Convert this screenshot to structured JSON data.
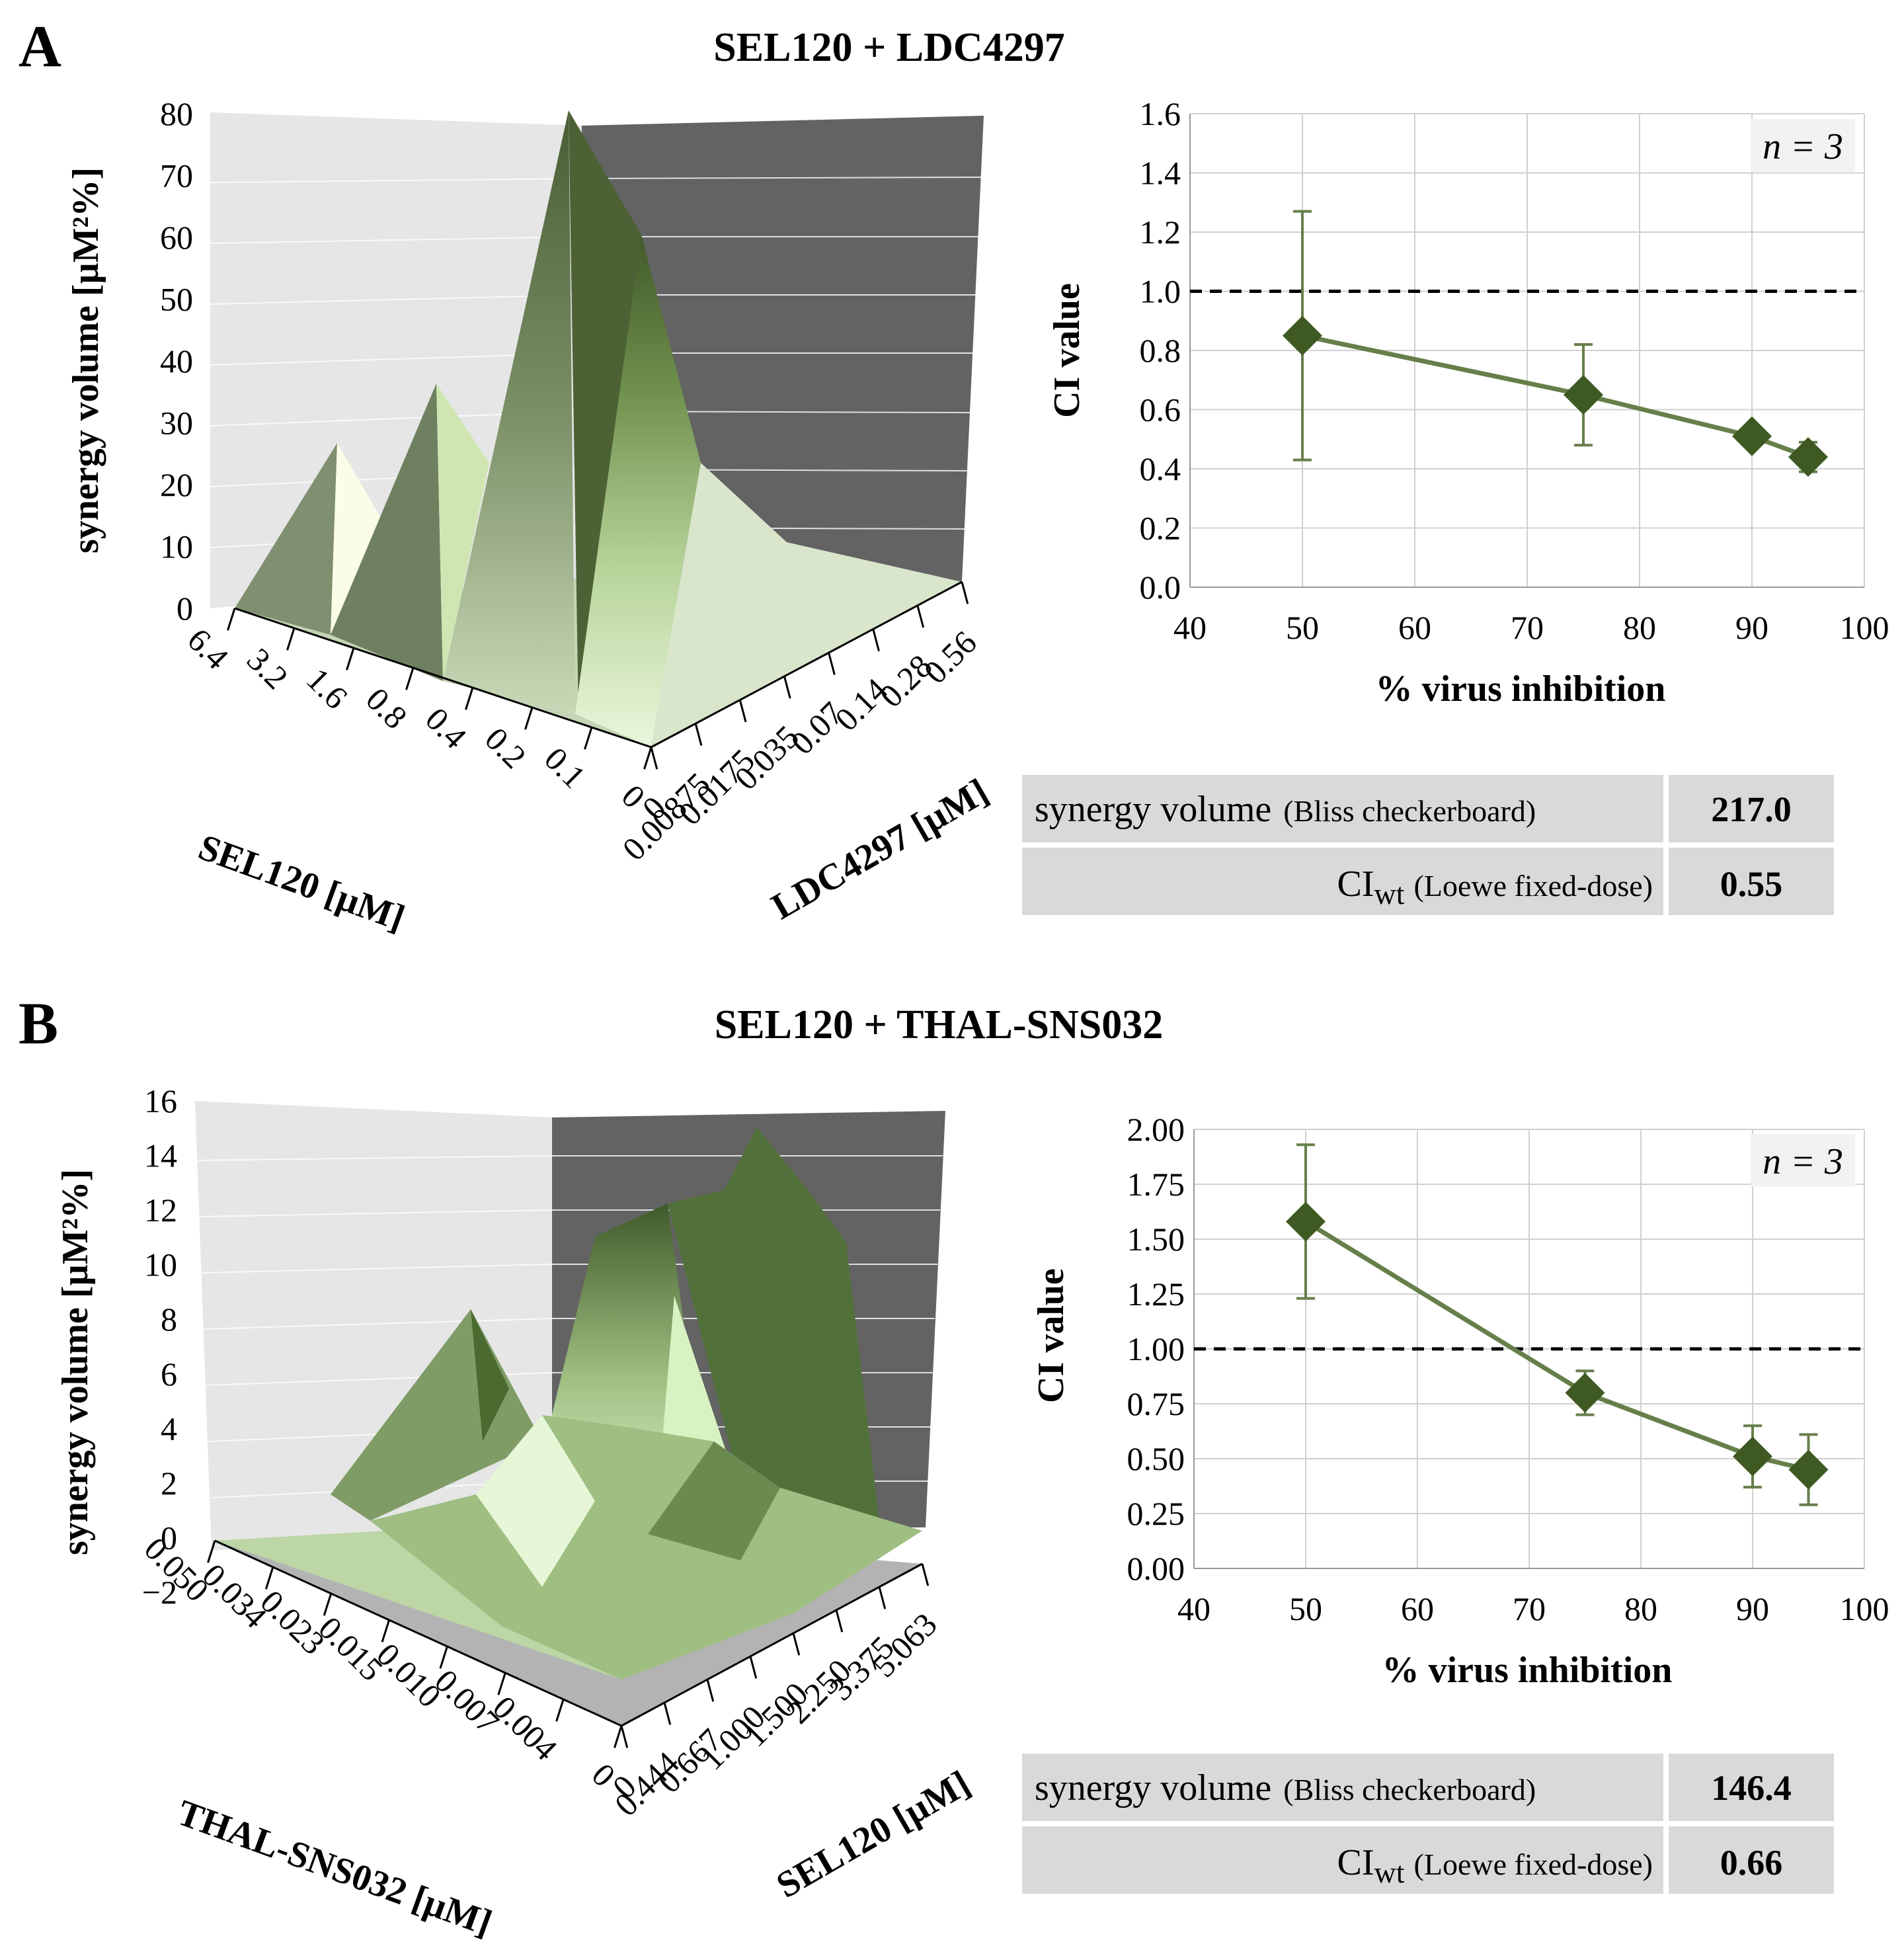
{
  "panels": [
    {
      "letter": "A",
      "title": "SEL120 + LDC4297"
    },
    {
      "letter": "B",
      "title": "SEL120 + THAL-SNS032"
    }
  ],
  "surfaces": [
    {
      "zlabel": "synergy volume [µM²%]",
      "zticks": [
        "0",
        "10",
        "20",
        "30",
        "40",
        "50",
        "60",
        "70",
        "80"
      ],
      "xlabel": "SEL120 [µM]",
      "xticks": [
        "6.4",
        "3.2",
        "1.6",
        "0.8",
        "0.4",
        "0.2",
        "0.1",
        "0"
      ],
      "ylabel": "LDC4297 [µM]",
      "yticks": [
        "0",
        "0.00875",
        "0.0175",
        "0.035",
        "0.07",
        "0.14",
        "0.28",
        "0.56"
      ]
    },
    {
      "zlabel": "synergy volume [µM²%]",
      "zticks": [
        "−2",
        "0",
        "2",
        "4",
        "6",
        "8",
        "10",
        "12",
        "14",
        "16"
      ],
      "xlabel": "THAL-SNS032 [µM]",
      "xticks": [
        "0.050",
        "0.034",
        "0.023",
        "0.015",
        "0.010",
        "0.007",
        "0.004",
        "0"
      ],
      "ylabel": "SEL120 [µM]",
      "yticks": [
        "0",
        "0.444",
        "0.667",
        "1.000",
        "1.500",
        "2.250",
        "3.375",
        "5.063"
      ]
    }
  ],
  "chart_data": [
    {
      "type": "line",
      "title": "SEL120 + LDC4297",
      "xlabel": "% virus inhibition",
      "ylabel": "CI value",
      "xlim": [
        40,
        100
      ],
      "ylim": [
        0,
        1.6
      ],
      "xticks": [
        40,
        50,
        60,
        70,
        80,
        90,
        100
      ],
      "yticks": [
        0.0,
        0.2,
        0.4,
        0.6,
        0.8,
        1.0,
        1.2,
        1.4,
        1.6
      ],
      "ytick_labels": [
        "0.0",
        "0.2",
        "0.4",
        "0.6",
        "0.8",
        "1.0",
        "1.2",
        "1.4",
        "1.6"
      ],
      "series": [
        {
          "name": "CI",
          "x": [
            50,
            75,
            90,
            95
          ],
          "y": [
            0.85,
            0.65,
            0.51,
            0.44
          ],
          "err": [
            0.42,
            0.17,
            0.03,
            0.05
          ]
        }
      ],
      "reference_line": 1.0,
      "annotation": "n = 3",
      "table": [
        {
          "label": "synergy volume",
          "sub": "(Bliss checkerboard)",
          "value": "217.0"
        },
        {
          "label": "CI",
          "label_sub": "wt",
          "sub": "(Loewe fixed-dose)",
          "value": "0.55"
        }
      ]
    },
    {
      "type": "line",
      "title": "SEL120 + THAL-SNS032",
      "xlabel": "% virus inhibition",
      "ylabel": "CI value",
      "xlim": [
        40,
        100
      ],
      "ylim": [
        0,
        2.0
      ],
      "xticks": [
        40,
        50,
        60,
        70,
        80,
        90,
        100
      ],
      "yticks": [
        0.0,
        0.25,
        0.5,
        0.75,
        1.0,
        1.25,
        1.5,
        1.75,
        2.0
      ],
      "ytick_labels": [
        "0.00",
        "0.25",
        "0.50",
        "0.75",
        "1.00",
        "1.25",
        "1.50",
        "1.75",
        "2.00"
      ],
      "series": [
        {
          "name": "CI",
          "x": [
            50,
            75,
            90,
            95
          ],
          "y": [
            1.58,
            0.8,
            0.51,
            0.45
          ],
          "err": [
            0.35,
            0.1,
            0.14,
            0.16
          ]
        }
      ],
      "reference_line": 1.0,
      "annotation": "n = 3",
      "table": [
        {
          "label": "synergy volume",
          "sub": "(Bliss checkerboard)",
          "value": "146.4"
        },
        {
          "label": "CI",
          "label_sub": "wt",
          "sub": "(Loewe fixed-dose)",
          "value": "0.66"
        }
      ]
    }
  ],
  "colors": {
    "series": "#3e5a22",
    "line": "#667f4a",
    "grid": "#d0d0d0",
    "table_bg": "#d9d9d9",
    "left_wall": "#e6e6e6",
    "right_wall": "#636363"
  }
}
